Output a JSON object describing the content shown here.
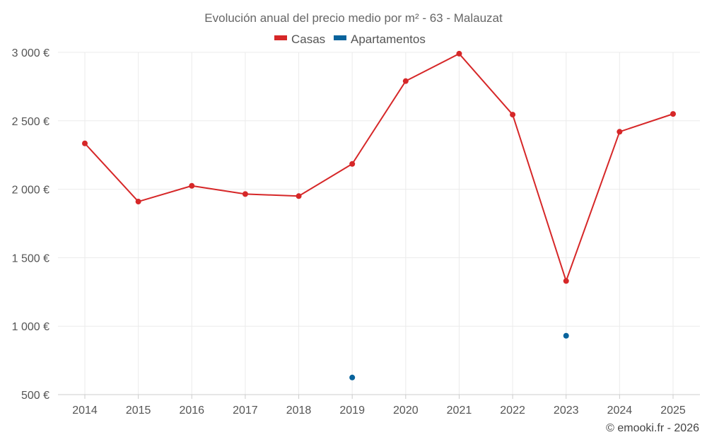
{
  "chart_data": {
    "type": "line",
    "title": "Evolución anual del precio medio por m² - 63 - Malauzat",
    "categories": [
      "2014",
      "2015",
      "2016",
      "2017",
      "2018",
      "2019",
      "2020",
      "2021",
      "2022",
      "2023",
      "2024",
      "2025"
    ],
    "series": [
      {
        "name": "Casas",
        "color": "#d62728",
        "values": [
          2335,
          1910,
          2025,
          1965,
          1950,
          2185,
          2790,
          2990,
          2545,
          1330,
          2420,
          2550
        ]
      },
      {
        "name": "Apartamentos",
        "color": "#08639c",
        "values": [
          null,
          null,
          null,
          null,
          null,
          625,
          null,
          null,
          null,
          930,
          null,
          null
        ]
      }
    ],
    "ylim": [
      500,
      3000
    ],
    "yticks": [
      500,
      1000,
      1500,
      2000,
      2500,
      3000
    ],
    "ytick_labels": [
      "500 €",
      "1 000 €",
      "1 500 €",
      "2 000 €",
      "2 500 €",
      "3 000 €"
    ],
    "xlabel": "",
    "ylabel": "",
    "legend": "top-center",
    "grid": true
  },
  "credit": "© emooki.fr - 2026"
}
